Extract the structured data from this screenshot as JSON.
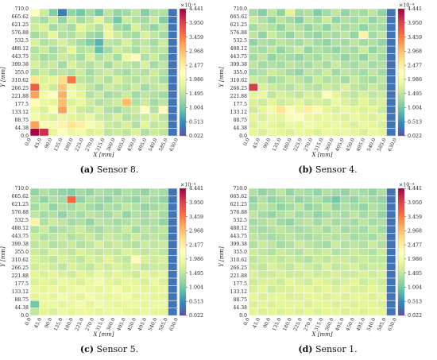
{
  "colorbar": {
    "exponent": "×10⁻⁴",
    "ticks": [
      "4.441",
      "3.950",
      "3.459",
      "2.968",
      "2.477",
      "1.986",
      "1.495",
      "1.004",
      "0.513",
      "0.022"
    ],
    "min": 0.022,
    "max": 4.441,
    "colors": [
      "#5e4fa2",
      "#3288bd",
      "#66c2a5",
      "#abdda4",
      "#e6f598",
      "#ffffbf",
      "#fee08b",
      "#fdae61",
      "#f46d43",
      "#d53e4f",
      "#9e0142"
    ]
  },
  "axes": {
    "xlabel": "X [mm]",
    "ylabel": "Y [mm]",
    "xticks": [
      "0.0",
      "45.0",
      "90.0",
      "135.0",
      "180.0",
      "225.0",
      "270.0",
      "315.0",
      "360.0",
      "405.0",
      "450.0",
      "495.0",
      "540.0",
      "585.0",
      "630.0"
    ],
    "yticks": [
      "710.0",
      "665.62",
      "621.25",
      "576.88",
      "532.5",
      "488.12",
      "443.75",
      "399.38",
      "355.0",
      "310.62",
      "266.25",
      "221.88",
      "177.5",
      "133.12",
      "88.75",
      "44.38",
      "0.0"
    ]
  },
  "captions": [
    {
      "label": "(a)",
      "text": "Sensor 8."
    },
    {
      "label": "(b)",
      "text": "Sensor 4."
    },
    {
      "label": "(c)",
      "text": "Sensor 5."
    },
    {
      "label": "(d)",
      "text": "Sensor 1."
    }
  ],
  "chart_data": [
    {
      "type": "heatmap",
      "title": "Sensor 8",
      "xlabel": "X [mm]",
      "ylabel": "Y [mm]",
      "zlim": [
        0.022,
        4.441
      ],
      "z": [
        [
          2.2,
          1.6,
          1.1,
          0.4,
          1.2,
          1.0,
          1.3,
          1.0,
          1.5,
          1.2,
          1.3,
          1.5,
          1.1,
          1.4,
          1.4,
          0.3
        ],
        [
          1.5,
          1.3,
          1.6,
          1.2,
          1.6,
          1.3,
          1.5,
          1.8,
          1.4,
          1.0,
          1.6,
          1.4,
          1.3,
          1.6,
          1.1,
          0.3
        ],
        [
          1.6,
          1.7,
          1.3,
          1.5,
          1.3,
          1.8,
          1.6,
          1.4,
          1.8,
          1.3,
          1.2,
          1.7,
          1.4,
          1.2,
          1.5,
          0.3
        ],
        [
          1.3,
          1.5,
          1.8,
          1.4,
          1.4,
          1.6,
          1.3,
          1.2,
          1.9,
          1.6,
          1.4,
          1.3,
          1.7,
          1.5,
          1.3,
          0.3
        ],
        [
          1.7,
          1.4,
          1.5,
          1.7,
          1.5,
          1.3,
          1.1,
          0.8,
          1.5,
          1.4,
          1.7,
          1.4,
          1.5,
          1.3,
          1.6,
          0.3
        ],
        [
          1.4,
          1.6,
          1.3,
          1.5,
          1.8,
          1.4,
          1.5,
          0.9,
          1.3,
          1.6,
          1.5,
          1.3,
          1.6,
          1.4,
          1.5,
          0.3
        ],
        [
          1.5,
          1.3,
          1.4,
          1.6,
          1.5,
          1.3,
          1.7,
          1.4,
          1.6,
          1.3,
          1.9,
          2.3,
          1.4,
          1.6,
          1.3,
          0.3
        ],
        [
          1.7,
          1.5,
          1.6,
          1.3,
          1.7,
          1.5,
          1.4,
          1.6,
          1.3,
          1.6,
          1.5,
          1.4,
          1.7,
          1.3,
          1.5,
          0.3
        ],
        [
          1.4,
          1.6,
          1.4,
          1.5,
          1.4,
          1.6,
          1.3,
          1.5,
          1.6,
          1.4,
          1.3,
          1.5,
          1.4,
          1.6,
          1.4,
          0.3
        ],
        [
          2.6,
          1.7,
          1.8,
          2.7,
          3.5,
          1.5,
          1.4,
          1.6,
          1.4,
          1.7,
          1.5,
          1.4,
          1.6,
          1.5,
          1.3,
          0.3
        ],
        [
          3.7,
          1.8,
          1.6,
          2.9,
          1.9,
          1.7,
          1.5,
          1.3,
          1.6,
          1.5,
          1.4,
          1.6,
          1.3,
          1.5,
          1.6,
          0.3
        ],
        [
          3.2,
          2.0,
          2.2,
          3.1,
          2.0,
          1.8,
          1.4,
          1.6,
          1.3,
          1.4,
          1.6,
          1.3,
          1.5,
          1.4,
          1.3,
          0.3
        ],
        [
          2.3,
          1.9,
          1.8,
          3.0,
          1.7,
          1.9,
          1.6,
          1.4,
          1.5,
          1.6,
          3.0,
          1.4,
          1.6,
          1.3,
          1.5,
          0.3
        ],
        [
          1.9,
          1.7,
          2.1,
          3.2,
          1.9,
          1.6,
          1.5,
          1.7,
          1.4,
          1.3,
          1.5,
          1.6,
          2.2,
          1.4,
          2.3,
          0.3
        ],
        [
          2.0,
          1.8,
          1.7,
          1.9,
          1.8,
          1.7,
          1.9,
          1.6,
          1.5,
          1.7,
          1.4,
          1.5,
          1.6,
          1.7,
          1.5,
          0.3
        ],
        [
          3.2,
          2.1,
          2.0,
          2.4,
          2.6,
          2.5,
          2.1,
          1.9,
          1.6,
          1.5,
          1.7,
          1.4,
          1.8,
          1.5,
          1.6,
          0.3
        ],
        [
          4.4,
          4.1,
          1.8,
          2.2,
          1.9,
          2.0,
          1.7,
          1.8,
          1.5,
          1.6,
          1.5,
          1.7,
          1.4,
          1.6,
          1.5,
          0.3
        ]
      ]
    },
    {
      "type": "heatmap",
      "title": "Sensor 4",
      "xlabel": "X [mm]",
      "ylabel": "Y [mm]",
      "zlim": [
        0.022,
        4.441
      ],
      "z": [
        [
          1.3,
          1.1,
          1.5,
          1.2,
          1.8,
          1.3,
          1.4,
          1.1,
          1.3,
          1.5,
          1.2,
          1.4,
          1.3,
          1.5,
          1.2,
          0.3
        ],
        [
          1.6,
          1.4,
          1.2,
          1.5,
          1.3,
          1.1,
          1.5,
          1.3,
          1.6,
          1.2,
          1.4,
          1.3,
          1.5,
          1.2,
          1.4,
          0.3
        ],
        [
          1.3,
          1.5,
          1.4,
          1.2,
          1.5,
          1.4,
          1.2,
          1.4,
          1.2,
          1.5,
          1.3,
          1.4,
          1.2,
          1.4,
          1.3,
          0.3
        ],
        [
          1.5,
          1.2,
          1.6,
          1.4,
          1.2,
          1.5,
          1.3,
          1.2,
          1.4,
          1.3,
          1.5,
          1.2,
          2.4,
          1.3,
          1.5,
          0.3
        ],
        [
          1.2,
          1.4,
          1.3,
          1.5,
          1.4,
          1.3,
          1.5,
          1.3,
          1.2,
          1.4,
          1.3,
          1.5,
          1.3,
          1.4,
          1.2,
          0.3
        ],
        [
          1.4,
          1.3,
          1.5,
          1.2,
          1.4,
          1.6,
          1.2,
          1.4,
          1.3,
          1.2,
          1.4,
          1.3,
          1.6,
          1.2,
          1.4,
          0.3
        ],
        [
          1.3,
          1.5,
          1.2,
          1.4,
          1.3,
          1.2,
          1.4,
          1.3,
          1.5,
          1.4,
          1.2,
          1.4,
          1.2,
          1.5,
          1.3,
          0.3
        ],
        [
          1.5,
          1.3,
          1.4,
          1.3,
          1.5,
          1.4,
          1.3,
          1.5,
          1.3,
          1.6,
          1.4,
          1.3,
          1.5,
          1.3,
          1.4,
          0.3
        ],
        [
          1.3,
          1.4,
          1.6,
          1.5,
          1.3,
          1.2,
          1.5,
          1.4,
          1.6,
          1.3,
          1.5,
          1.4,
          1.3,
          1.5,
          1.3,
          0.3
        ],
        [
          1.6,
          1.5,
          1.3,
          1.4,
          1.6,
          1.5,
          1.3,
          1.6,
          1.4,
          1.5,
          1.3,
          1.6,
          1.4,
          1.3,
          1.5,
          0.3
        ],
        [
          4.0,
          1.7,
          1.6,
          1.5,
          1.4,
          1.6,
          1.5,
          1.4,
          1.6,
          1.5,
          1.7,
          1.5,
          1.4,
          1.6,
          1.4,
          0.3
        ],
        [
          1.8,
          1.9,
          1.5,
          1.7,
          1.6,
          1.5,
          1.7,
          1.6,
          2.2,
          1.8,
          1.6,
          1.5,
          1.7,
          1.5,
          1.6,
          0.3
        ],
        [
          1.7,
          1.6,
          1.8,
          1.6,
          1.7,
          1.8,
          1.6,
          1.7,
          1.6,
          1.9,
          1.7,
          1.6,
          1.8,
          1.6,
          1.7,
          0.3
        ],
        [
          1.6,
          1.8,
          2.0,
          2.6,
          2.3,
          1.9,
          2.5,
          2.1,
          1.8,
          1.7,
          1.9,
          1.8,
          1.7,
          1.8,
          1.6,
          0.3
        ],
        [
          1.8,
          1.7,
          1.9,
          1.8,
          2.1,
          2.2,
          1.9,
          1.8,
          1.9,
          1.8,
          1.7,
          1.9,
          1.8,
          1.7,
          1.8,
          0.3
        ],
        [
          1.7,
          1.9,
          1.8,
          1.7,
          1.9,
          1.8,
          2.0,
          1.9,
          1.8,
          1.9,
          1.8,
          1.7,
          1.9,
          1.8,
          1.7,
          0.3
        ],
        [
          1.8,
          1.7,
          1.9,
          1.8,
          1.7,
          1.9,
          1.8,
          1.7,
          1.9,
          1.8,
          1.9,
          1.8,
          1.7,
          1.9,
          1.8,
          0.3
        ]
      ]
    },
    {
      "type": "heatmap",
      "title": "Sensor 5",
      "xlabel": "X [mm]",
      "ylabel": "Y [mm]",
      "zlim": [
        0.022,
        4.441
      ],
      "z": [
        [
          1.2,
          1.4,
          1.3,
          1.2,
          1.1,
          1.3,
          1.2,
          1.4,
          1.3,
          1.2,
          1.4,
          1.3,
          1.2,
          1.4,
          1.3,
          0.3
        ],
        [
          1.4,
          1.2,
          1.4,
          1.3,
          3.6,
          1.2,
          1.4,
          1.3,
          1.2,
          1.4,
          1.3,
          1.2,
          1.4,
          1.3,
          1.2,
          0.3
        ],
        [
          1.3,
          1.5,
          1.2,
          1.4,
          1.3,
          1.5,
          1.3,
          1.2,
          1.4,
          1.3,
          1.5,
          1.4,
          1.2,
          1.3,
          1.4,
          0.3
        ],
        [
          1.5,
          1.3,
          1.4,
          1.2,
          1.4,
          1.3,
          1.5,
          1.4,
          1.3,
          1.5,
          1.2,
          1.4,
          1.3,
          1.5,
          1.3,
          0.3
        ],
        [
          2.4,
          1.4,
          1.6,
          1.5,
          1.3,
          1.4,
          1.2,
          1.5,
          1.4,
          1.3,
          1.4,
          1.5,
          1.3,
          1.4,
          1.2,
          0.3
        ],
        [
          1.4,
          1.6,
          1.3,
          1.4,
          1.5,
          1.6,
          1.4,
          1.3,
          1.5,
          1.4,
          1.6,
          1.3,
          1.5,
          1.4,
          1.5,
          0.3
        ],
        [
          1.6,
          1.4,
          1.5,
          1.6,
          1.4,
          1.5,
          1.6,
          1.4,
          1.6,
          1.5,
          1.4,
          1.6,
          1.4,
          1.5,
          1.4,
          0.3
        ],
        [
          1.5,
          1.6,
          1.4,
          1.5,
          1.6,
          1.4,
          1.5,
          1.7,
          1.5,
          1.6,
          1.5,
          1.4,
          1.6,
          1.5,
          1.6,
          0.3
        ],
        [
          1.6,
          1.5,
          1.7,
          1.6,
          1.5,
          1.7,
          1.6,
          1.5,
          1.6,
          1.5,
          1.7,
          1.6,
          1.5,
          1.6,
          1.5,
          0.3
        ],
        [
          1.7,
          1.6,
          1.5,
          1.7,
          1.6,
          1.5,
          1.7,
          1.6,
          1.8,
          1.6,
          1.5,
          2.3,
          1.7,
          1.6,
          1.7,
          0.3
        ],
        [
          1.6,
          1.7,
          1.6,
          1.5,
          1.7,
          1.6,
          1.5,
          1.7,
          1.6,
          1.7,
          1.6,
          1.7,
          1.5,
          1.6,
          1.6,
          0.3
        ],
        [
          1.8,
          1.7,
          1.8,
          1.7,
          1.6,
          1.8,
          1.7,
          1.9,
          1.7,
          1.8,
          1.7,
          1.6,
          1.8,
          1.7,
          1.8,
          0.3
        ],
        [
          1.7,
          1.8,
          1.7,
          1.9,
          1.8,
          1.7,
          1.9,
          2.0,
          1.8,
          1.7,
          1.9,
          1.8,
          1.7,
          1.9,
          1.7,
          0.3
        ],
        [
          1.9,
          1.8,
          1.9,
          1.8,
          1.9,
          2.0,
          1.9,
          1.8,
          1.9,
          2.0,
          1.8,
          1.9,
          1.8,
          1.8,
          1.9,
          0.3
        ],
        [
          1.8,
          1.9,
          1.8,
          2.0,
          1.9,
          1.8,
          2.0,
          1.9,
          1.8,
          1.9,
          2.0,
          1.8,
          1.9,
          1.8,
          1.8,
          0.3
        ],
        [
          1.0,
          1.9,
          1.9,
          1.8,
          1.9,
          2.0,
          1.8,
          2.0,
          1.9,
          1.8,
          1.9,
          1.9,
          1.8,
          1.9,
          1.9,
          0.3
        ],
        [
          1.5,
          1.8,
          1.7,
          1.9,
          1.8,
          1.9,
          1.9,
          1.8,
          1.9,
          1.9,
          1.8,
          1.8,
          1.9,
          1.8,
          1.8,
          0.3
        ]
      ]
    },
    {
      "type": "heatmap",
      "title": "Sensor 1",
      "xlabel": "X [mm]",
      "ylabel": "Y [mm]",
      "zlim": [
        0.022,
        4.441
      ],
      "z": [
        [
          1.4,
          1.2,
          1.3,
          1.5,
          1.2,
          1.4,
          1.3,
          1.2,
          1.4,
          1.3,
          1.2,
          1.4,
          1.3,
          1.2,
          1.4,
          0.3
        ],
        [
          1.2,
          1.4,
          1.2,
          1.3,
          1.4,
          1.2,
          1.3,
          1.4,
          1.2,
          1.0,
          1.3,
          1.2,
          1.4,
          1.3,
          1.2,
          0.3
        ],
        [
          1.3,
          1.5,
          1.4,
          1.2,
          1.3,
          1.5,
          1.2,
          1.3,
          1.5,
          1.2,
          1.4,
          1.3,
          1.2,
          1.4,
          1.3,
          0.3
        ],
        [
          1.5,
          1.3,
          1.2,
          1.4,
          1.5,
          1.3,
          1.4,
          1.2,
          1.3,
          1.4,
          1.3,
          1.5,
          1.3,
          1.4,
          1.2,
          0.3
        ],
        [
          1.3,
          1.4,
          1.5,
          1.3,
          1.2,
          1.4,
          1.5,
          1.3,
          1.5,
          1.3,
          1.4,
          1.3,
          1.5,
          1.3,
          1.4,
          0.3
        ],
        [
          1.4,
          1.3,
          1.4,
          1.5,
          1.4,
          1.3,
          1.4,
          1.5,
          1.3,
          1.5,
          1.3,
          1.4,
          1.3,
          1.5,
          1.3,
          0.3
        ],
        [
          1.5,
          1.4,
          1.3,
          1.4,
          1.5,
          1.4,
          1.3,
          1.4,
          1.5,
          1.4,
          1.5,
          1.3,
          1.4,
          1.3,
          1.5,
          0.3
        ],
        [
          1.4,
          1.6,
          1.5,
          1.3,
          1.4,
          1.6,
          1.5,
          1.4,
          1.3,
          1.6,
          1.4,
          1.5,
          1.4,
          1.6,
          1.4,
          0.3
        ],
        [
          1.6,
          1.5,
          1.4,
          1.6,
          1.5,
          1.4,
          1.6,
          1.5,
          1.6,
          1.4,
          1.5,
          1.6,
          1.5,
          1.4,
          1.6,
          0.3
        ],
        [
          1.5,
          1.6,
          1.6,
          1.5,
          1.6,
          1.5,
          1.4,
          1.6,
          1.5,
          1.6,
          1.6,
          1.5,
          1.6,
          1.5,
          1.5,
          0.3
        ],
        [
          1.6,
          1.5,
          1.7,
          1.6,
          1.5,
          1.7,
          1.6,
          1.5,
          1.7,
          1.5,
          1.6,
          1.7,
          1.5,
          1.6,
          1.6,
          0.3
        ],
        [
          1.7,
          1.6,
          1.6,
          1.7,
          1.6,
          1.6,
          1.7,
          1.6,
          1.6,
          1.7,
          1.6,
          1.6,
          1.7,
          1.6,
          1.7,
          0.3
        ],
        [
          1.6,
          1.7,
          1.7,
          1.6,
          1.8,
          1.7,
          1.6,
          1.8,
          1.7,
          1.6,
          1.7,
          1.8,
          1.6,
          1.7,
          1.6,
          0.3
        ],
        [
          1.7,
          1.8,
          1.6,
          1.7,
          1.7,
          1.8,
          1.8,
          1.7,
          1.8,
          1.7,
          1.8,
          1.7,
          1.7,
          1.8,
          1.7,
          0.3
        ],
        [
          1.8,
          1.7,
          1.8,
          1.8,
          1.7,
          1.7,
          1.8,
          1.8,
          1.7,
          1.8,
          1.7,
          1.8,
          1.8,
          1.7,
          1.8,
          0.3
        ],
        [
          1.7,
          1.8,
          1.7,
          1.8,
          1.8,
          1.8,
          1.7,
          1.8,
          1.8,
          1.7,
          1.8,
          1.7,
          1.8,
          1.8,
          1.7,
          0.3
        ],
        [
          1.8,
          1.7,
          1.8,
          1.7,
          1.8,
          1.7,
          1.8,
          1.7,
          1.8,
          1.8,
          1.7,
          1.8,
          1.7,
          1.8,
          1.8,
          0.3
        ]
      ]
    }
  ]
}
